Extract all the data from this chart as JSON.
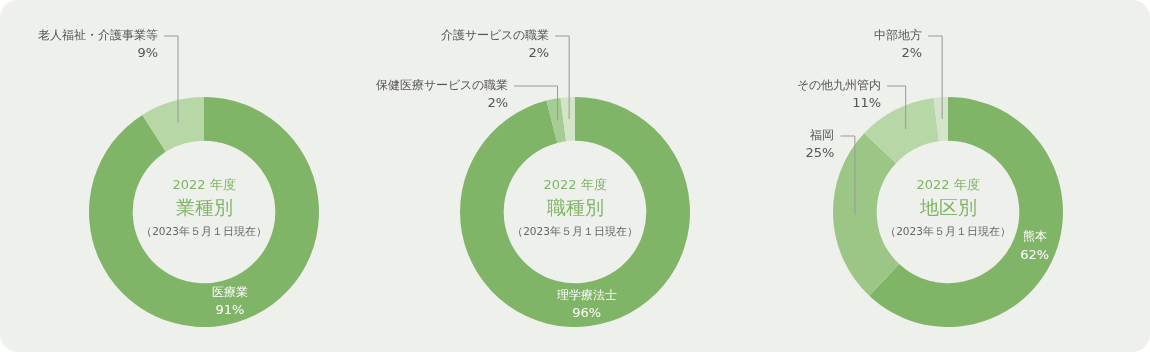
{
  "chart_data": [
    {
      "type": "donut",
      "subtitle": "2022 年度",
      "title": "業種別",
      "annotations": [
        "（2023年５月１日現在）"
      ],
      "categories": [
        "医療業",
        "老人福祉・介護事業等"
      ],
      "values": [
        91,
        9
      ],
      "value_labels": [
        "91%",
        "9%"
      ],
      "colors": [
        "#80b466",
        "#b8d7a7"
      ]
    },
    {
      "type": "donut",
      "subtitle": "2022 年度",
      "title": "職種別",
      "annotations": [
        "（2023年５月１日現在）"
      ],
      "categories": [
        "理学療法士",
        "保健医療サービスの職業",
        "介護サービスの職業"
      ],
      "values": [
        96,
        2,
        2
      ],
      "value_labels": [
        "96%",
        "2%",
        "2%"
      ],
      "colors": [
        "#80b466",
        "#a5cc92",
        "#d3e5c8"
      ]
    },
    {
      "type": "donut",
      "subtitle": "2022 年度",
      "title": "地区別",
      "annotations": [
        "（2023年５月１日現在）"
      ],
      "categories": [
        "熊本",
        "福岡",
        "その他九州管内",
        "中部地方"
      ],
      "values": [
        62,
        25,
        11,
        2
      ],
      "value_labels": [
        "62%",
        "25%",
        "11%",
        "2%"
      ],
      "colors": [
        "#80b466",
        "#9bc686",
        "#b8d7a7",
        "#d3e5c8"
      ]
    }
  ]
}
